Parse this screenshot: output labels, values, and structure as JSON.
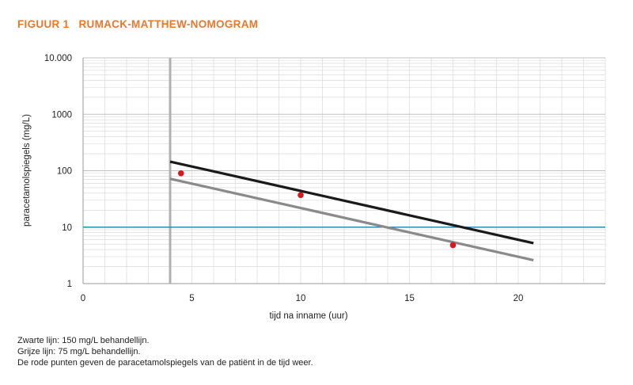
{
  "figure": {
    "number": "FIGUUR 1",
    "title": "RUMACK-MATTHEW-NOMOGRAM"
  },
  "notes": [
    "Zwarte lijn: 150 mg/L behandellijn.",
    "Grijze lijn: 75 mg/L behandellijn.",
    "De rode punten geven de paracetamolspiegels van de patiënt in de tijd weer."
  ],
  "colors": {
    "title": "#e8772e",
    "line_150": "#1a1a1a",
    "line_75": "#8a8a8a",
    "threshold": "#2a8fa0",
    "points": "#d7191f",
    "grid": "#d4d4d4",
    "start_marker": "#b0b0b0"
  },
  "chart_data": {
    "type": "line",
    "xlabel": "tijd na inname (uur)",
    "ylabel": "paracetamolspiegels (mg/L)",
    "x_ticks": [
      0,
      5,
      10,
      15,
      20
    ],
    "x_tick_labels": [
      "0",
      "5",
      "10",
      "15",
      "20"
    ],
    "xlim": [
      0,
      24
    ],
    "y_scale": "log",
    "y_ticks": [
      1,
      10,
      100,
      1000,
      10000
    ],
    "y_tick_labels": [
      "1",
      "10",
      "100",
      "1000",
      "10.000"
    ],
    "ylim": [
      1,
      10000
    ],
    "grid": true,
    "start_marker_x": 4,
    "threshold_y": 10,
    "series": [
      {
        "key": "line_150",
        "x": [
          4,
          20.7
        ],
        "y": [
          145,
          5.2
        ]
      },
      {
        "key": "line_75",
        "x": [
          4,
          20.7
        ],
        "y": [
          72,
          2.6
        ]
      }
    ],
    "points": {
      "x": [
        4.5,
        10,
        17
      ],
      "y": [
        90,
        37,
        4.8
      ]
    }
  }
}
